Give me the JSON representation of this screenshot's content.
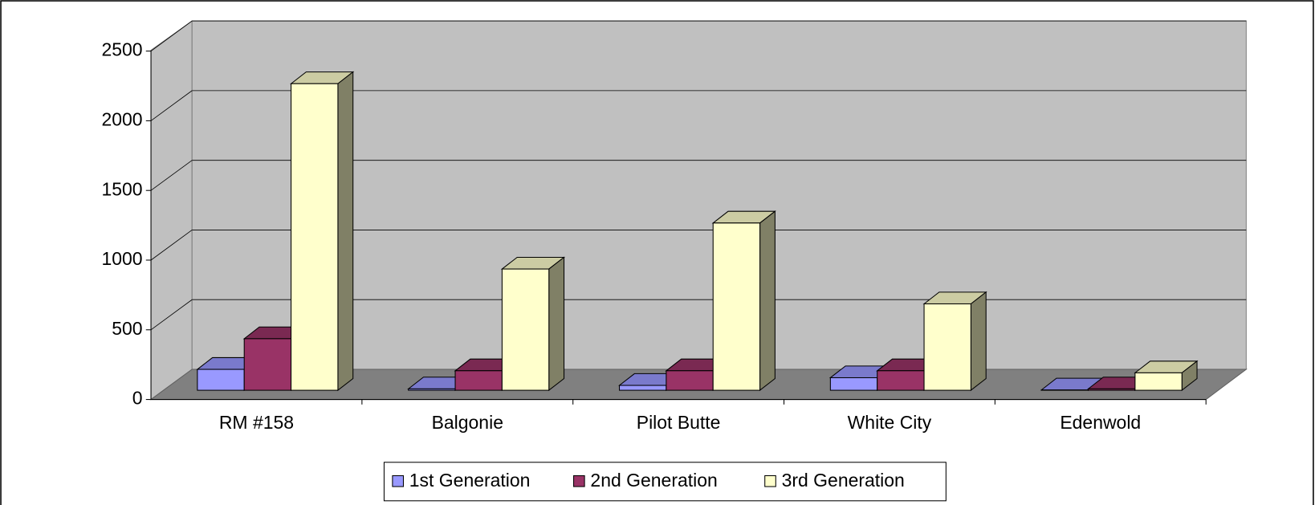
{
  "chart_data": {
    "type": "bar3d",
    "categories": [
      "RM #158",
      "Balgonie",
      "Pilot Butte",
      "White City",
      "Edenwold"
    ],
    "series": [
      {
        "name": "1st Generation",
        "color": "#9999ff",
        "values": [
          150,
          10,
          35,
          90,
          2
        ]
      },
      {
        "name": "2nd Generation",
        "color": "#993366",
        "values": [
          370,
          140,
          140,
          140,
          10
        ]
      },
      {
        "name": "3rd Generation",
        "color": "#ffffcc",
        "values": [
          2200,
          870,
          1200,
          620,
          125
        ]
      }
    ],
    "ylim": [
      0,
      2500
    ],
    "yticks": [
      0,
      500,
      1000,
      1500,
      2000,
      2500
    ],
    "grid": true,
    "legend": "bottom"
  }
}
